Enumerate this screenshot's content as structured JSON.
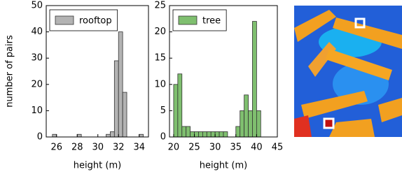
{
  "chart_data": [
    {
      "type": "histogram",
      "xlabel": "height (m)",
      "ylabel": "number of pairs",
      "bins": [
        25.6,
        26.0,
        26.4,
        26.8,
        27.2,
        27.6,
        28.0,
        28.4,
        28.8,
        29.2,
        29.6,
        30.0,
        30.4,
        30.8,
        31.2,
        31.6,
        32.0,
        32.4,
        32.8,
        33.2,
        33.6,
        34.0,
        34.4
      ],
      "series": [
        {
          "name": "rooftop",
          "color": "#b3b3b3",
          "values": [
            1,
            0,
            0,
            0,
            0,
            0,
            1,
            0,
            0,
            0,
            0,
            0,
            0,
            1,
            2,
            29,
            40,
            17,
            0,
            0,
            0,
            1
          ]
        }
      ],
      "xlim": [
        25,
        34.9
      ],
      "xticks": [
        26,
        28,
        30,
        32,
        34
      ],
      "ylim": [
        0,
        50
      ],
      "yticks": [
        0,
        10,
        20,
        30,
        40,
        50
      ],
      "legend": "upper left"
    },
    {
      "type": "histogram",
      "xlabel": "height (m)",
      "bins": [
        20,
        21,
        22,
        23,
        24,
        25,
        26,
        27,
        28,
        29,
        30,
        31,
        32,
        33,
        34,
        35,
        36,
        37,
        38,
        39,
        40,
        41
      ],
      "series": [
        {
          "name": "tree",
          "color": "#7fbf6f",
          "values": [
            10,
            12,
            2,
            2,
            1,
            1,
            1,
            1,
            1,
            1,
            1,
            1,
            1,
            0,
            0,
            2,
            5,
            8,
            5,
            22,
            5
          ]
        }
      ],
      "xlim": [
        19,
        45
      ],
      "xticks": [
        20,
        25,
        30,
        35,
        40,
        45
      ],
      "ylim": [
        0,
        25
      ],
      "yticks": [
        0,
        5,
        10,
        15,
        20,
        25
      ],
      "legend": "upper left"
    }
  ]
}
